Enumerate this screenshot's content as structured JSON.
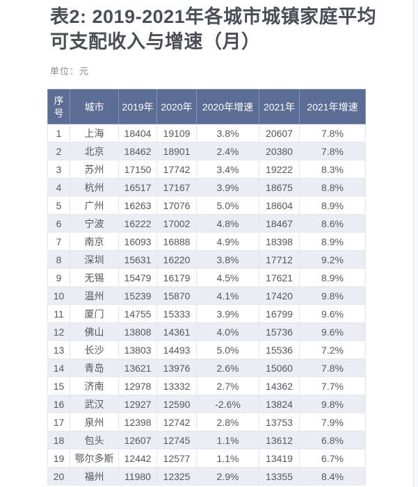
{
  "page": {
    "title": "表2: 2019-2021年各城市城镇家庭平均可支配收入与增速（月）",
    "unit_label": "单位：元"
  },
  "table": {
    "columns": [
      "序号",
      "城市",
      "2019年",
      "2020年",
      "2020年增速",
      "2021年",
      "2021年增速"
    ],
    "rows": [
      [
        "1",
        "上海",
        "18404",
        "19109",
        "3.8%",
        "20607",
        "7.8%"
      ],
      [
        "2",
        "北京",
        "18462",
        "18901",
        "2.4%",
        "20380",
        "7.8%"
      ],
      [
        "3",
        "苏州",
        "17150",
        "17742",
        "3.4%",
        "19222",
        "8.3%"
      ],
      [
        "4",
        "杭州",
        "16517",
        "17167",
        "3.9%",
        "18675",
        "8.8%"
      ],
      [
        "5",
        "广州",
        "16263",
        "17076",
        "5.0%",
        "18604",
        "8.9%"
      ],
      [
        "6",
        "宁波",
        "16222",
        "17002",
        "4.8%",
        "18467",
        "8.6%"
      ],
      [
        "7",
        "南京",
        "16093",
        "16888",
        "4.9%",
        "18398",
        "8.9%"
      ],
      [
        "8",
        "深圳",
        "15631",
        "16220",
        "3.8%",
        "17712",
        "9.2%"
      ],
      [
        "9",
        "无锡",
        "15479",
        "16179",
        "4.5%",
        "17621",
        "8.9%"
      ],
      [
        "10",
        "温州",
        "15239",
        "15870",
        "4.1%",
        "17420",
        "9.8%"
      ],
      [
        "11",
        "厦门",
        "14755",
        "15333",
        "3.9%",
        "16799",
        "9.6%"
      ],
      [
        "12",
        "佛山",
        "13808",
        "14361",
        "4.0%",
        "15736",
        "9.6%"
      ],
      [
        "13",
        "长沙",
        "13803",
        "14493",
        "5.0%",
        "15536",
        "7.2%"
      ],
      [
        "14",
        "青岛",
        "13621",
        "13976",
        "2.6%",
        "15060",
        "7.8%"
      ],
      [
        "15",
        "济南",
        "12978",
        "13332",
        "2.7%",
        "14362",
        "7.7%"
      ],
      [
        "16",
        "武汉",
        "12927",
        "12590",
        "-2.6%",
        "13824",
        "9.8%"
      ],
      [
        "17",
        "泉州",
        "12398",
        "12742",
        "2.8%",
        "13753",
        "7.9%"
      ],
      [
        "18",
        "包头",
        "12607",
        "12745",
        "1.1%",
        "13612",
        "6.8%"
      ],
      [
        "19",
        "鄂尔多斯",
        "12442",
        "12577",
        "1.1%",
        "13419",
        "6.7%"
      ],
      [
        "20",
        "福州",
        "11980",
        "12325",
        "2.9%",
        "13355",
        "8.4%"
      ]
    ]
  },
  "colors": {
    "header_bg": "#5c6d95",
    "header_text": "#ffffff",
    "row_alt_bg": "#ecedf2",
    "row_border": "#e7e8ed",
    "header_border": "#8593b2",
    "title_text": "#4a4d53",
    "cell_text": "#55575d",
    "unit_text": "#8b8b8e",
    "scrollbar_bg": "#f6f9fd"
  }
}
